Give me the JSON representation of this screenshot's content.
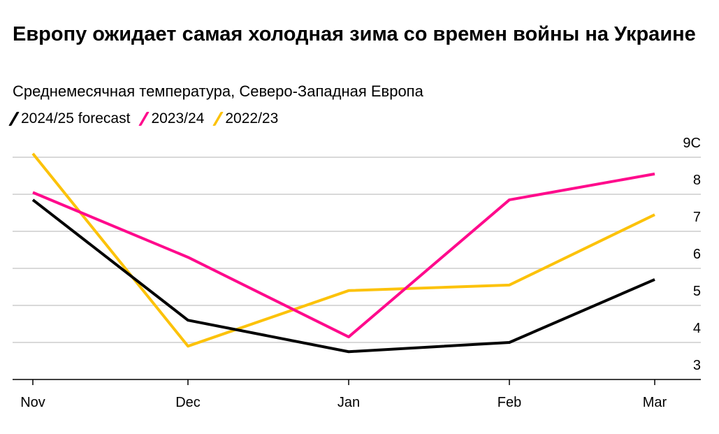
{
  "title": "Европу ожидает самая холодная зима со времен войны на Украине",
  "subtitle": "Среднемесячная температура, Северо-Западная Европа",
  "chart_data": {
    "type": "line",
    "categories": [
      "Nov",
      "Dec",
      "Jan",
      "Feb",
      "Mar"
    ],
    "series": [
      {
        "name": "2024/25 forecast",
        "color": "#000000",
        "values": [
          7.85,
          4.6,
          3.75,
          4.0,
          5.7
        ]
      },
      {
        "name": "2023/24",
        "color": "#ff0a8c",
        "values": [
          8.05,
          6.3,
          4.15,
          7.85,
          8.55
        ]
      },
      {
        "name": "2022/23",
        "color": "#fcc20a",
        "values": [
          9.1,
          3.9,
          5.4,
          5.55,
          7.45
        ]
      }
    ],
    "yticks": [
      "3",
      "4",
      "5",
      "6",
      "7",
      "8",
      "9C"
    ],
    "ylim": [
      3,
      9
    ],
    "grid": true,
    "legend": "top-left",
    "y_axis_side": "right"
  }
}
